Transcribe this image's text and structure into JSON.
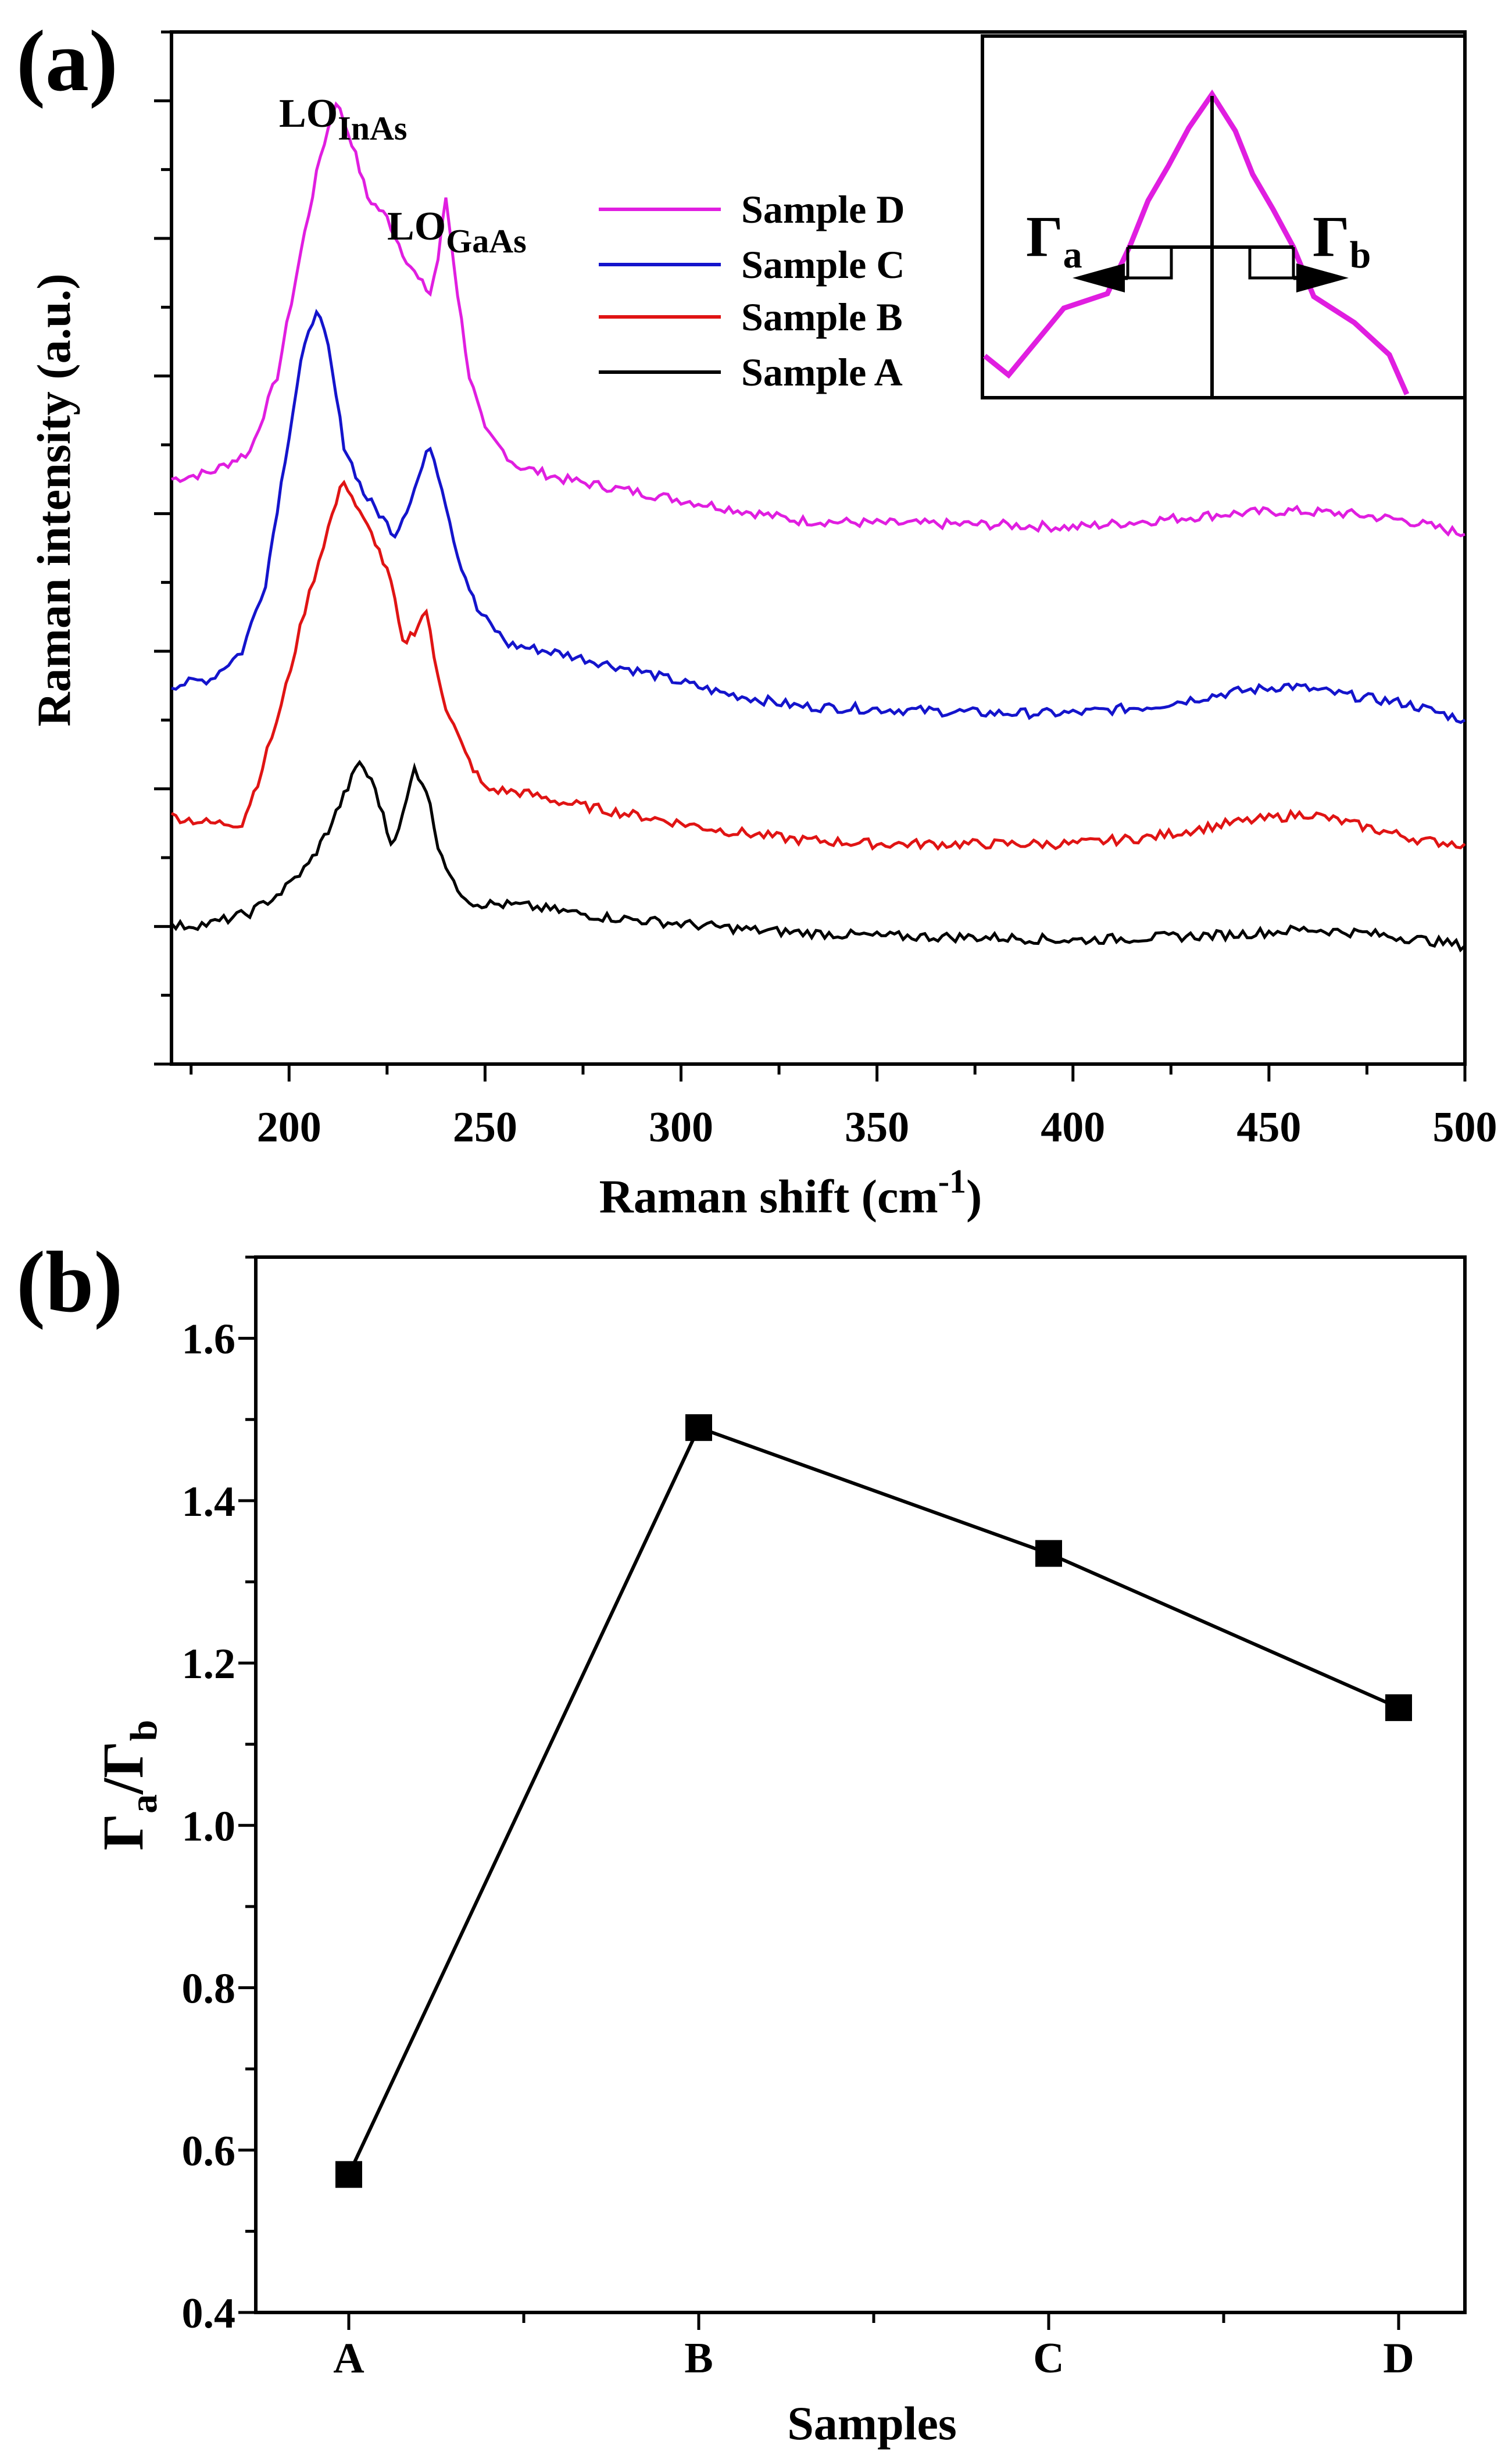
{
  "figure": {
    "colors": {
      "axis": "#000000",
      "sample_d": "#e01ee0",
      "sample_c": "#1414cc",
      "sample_b": "#e01414",
      "sample_a": "#000000"
    }
  },
  "chart_data": [
    {
      "panel": "(a)",
      "type": "line",
      "title": "",
      "xlabel": "Raman shift (cm",
      "xlabel_sup": "-1",
      "xlabel_end": ")",
      "ylabel": "Raman intensity (a.u.)",
      "xlim": [
        170,
        500
      ],
      "ylim": [
        0,
        7.5
      ],
      "x_ticks": [
        200,
        250,
        300,
        350,
        400,
        450,
        500
      ],
      "y_ticks_labeled": false,
      "peak_labels": [
        {
          "base": "LO",
          "sub": "InAs",
          "x": 212
        },
        {
          "base": "LO",
          "sub": "GaAs",
          "x": 240
        }
      ],
      "legend_position": "top-center",
      "series": [
        {
          "name": "Sample D",
          "color": "#e01ee0",
          "baseline": 4.2,
          "points": [
            [
              170,
              4.25
            ],
            [
              180,
              4.3
            ],
            [
              190,
              4.45
            ],
            [
              197,
              5.0
            ],
            [
              203,
              5.9
            ],
            [
              208,
              6.6
            ],
            [
              212,
              7.0
            ],
            [
              216,
              6.7
            ],
            [
              220,
              6.3
            ],
            [
              225,
              6.15
            ],
            [
              229,
              5.9
            ],
            [
              233,
              5.7
            ],
            [
              236,
              5.6
            ],
            [
              238,
              5.85
            ],
            [
              240,
              6.3
            ],
            [
              243,
              5.6
            ],
            [
              246,
              5.0
            ],
            [
              250,
              4.6
            ],
            [
              258,
              4.35
            ],
            [
              270,
              4.25
            ],
            [
              290,
              4.15
            ],
            [
              310,
              4.05
            ],
            [
              330,
              3.95
            ],
            [
              350,
              3.93
            ],
            [
              380,
              3.92
            ],
            [
              400,
              3.9
            ],
            [
              420,
              3.95
            ],
            [
              440,
              4.0
            ],
            [
              455,
              4.02
            ],
            [
              470,
              4.0
            ],
            [
              485,
              3.95
            ],
            [
              500,
              3.85
            ]
          ]
        },
        {
          "name": "Sample C",
          "color": "#1414cc",
          "baseline": 2.7,
          "points": [
            [
              170,
              2.75
            ],
            [
              180,
              2.8
            ],
            [
              188,
              3.0
            ],
            [
              194,
              3.5
            ],
            [
              199,
              4.4
            ],
            [
              203,
              5.1
            ],
            [
              207,
              5.5
            ],
            [
              210,
              5.2
            ],
            [
              214,
              4.5
            ],
            [
              219,
              4.15
            ],
            [
              223,
              4.0
            ],
            [
              227,
              3.85
            ],
            [
              231,
              4.1
            ],
            [
              236,
              4.5
            ],
            [
              239,
              4.2
            ],
            [
              243,
              3.7
            ],
            [
              248,
              3.3
            ],
            [
              256,
              3.05
            ],
            [
              270,
              2.98
            ],
            [
              290,
              2.85
            ],
            [
              310,
              2.7
            ],
            [
              330,
              2.6
            ],
            [
              350,
              2.58
            ],
            [
              380,
              2.55
            ],
            [
              400,
              2.55
            ],
            [
              420,
              2.6
            ],
            [
              440,
              2.7
            ],
            [
              455,
              2.75
            ],
            [
              470,
              2.68
            ],
            [
              485,
              2.62
            ],
            [
              500,
              2.5
            ]
          ]
        },
        {
          "name": "Sample B",
          "color": "#e01414",
          "baseline": 1.7,
          "points": [
            [
              170,
              1.8
            ],
            [
              180,
              1.75
            ],
            [
              188,
              1.75
            ],
            [
              192,
              2.05
            ],
            [
              198,
              2.6
            ],
            [
              204,
              3.3
            ],
            [
              210,
              3.9
            ],
            [
              214,
              4.25
            ],
            [
              218,
              4.0
            ],
            [
              222,
              3.8
            ],
            [
              226,
              3.5
            ],
            [
              229,
              3.05
            ],
            [
              232,
              3.15
            ],
            [
              235,
              3.3
            ],
            [
              237,
              2.95
            ],
            [
              240,
              2.6
            ],
            [
              245,
              2.25
            ],
            [
              250,
              2.0
            ],
            [
              260,
              1.97
            ],
            [
              270,
              1.9
            ],
            [
              290,
              1.8
            ],
            [
              310,
              1.7
            ],
            [
              330,
              1.63
            ],
            [
              350,
              1.6
            ],
            [
              380,
              1.6
            ],
            [
              400,
              1.6
            ],
            [
              420,
              1.65
            ],
            [
              440,
              1.75
            ],
            [
              460,
              1.82
            ],
            [
              475,
              1.72
            ],
            [
              490,
              1.62
            ],
            [
              500,
              1.6
            ]
          ]
        },
        {
          "name": "Sample A",
          "color": "#000000",
          "baseline": 1.0,
          "points": [
            [
              170,
              1.0
            ],
            [
              180,
              1.02
            ],
            [
              190,
              1.1
            ],
            [
              198,
              1.25
            ],
            [
              205,
              1.45
            ],
            [
              210,
              1.7
            ],
            [
              214,
              1.95
            ],
            [
              218,
              2.2
            ],
            [
              222,
              2.0
            ],
            [
              226,
              1.6
            ],
            [
              229,
              1.8
            ],
            [
              232,
              2.15
            ],
            [
              235,
              2.0
            ],
            [
              238,
              1.6
            ],
            [
              242,
              1.3
            ],
            [
              247,
              1.17
            ],
            [
              260,
              1.15
            ],
            [
              280,
              1.07
            ],
            [
              300,
              1.02
            ],
            [
              320,
              0.97
            ],
            [
              350,
              0.93
            ],
            [
              380,
              0.92
            ],
            [
              400,
              0.9
            ],
            [
              420,
              0.92
            ],
            [
              440,
              0.94
            ],
            [
              460,
              0.98
            ],
            [
              475,
              0.95
            ],
            [
              490,
              0.9
            ],
            [
              500,
              0.86
            ]
          ]
        }
      ],
      "inset": {
        "description_labels": {
          "left": "Γ",
          "left_sub": "a",
          "right": "Γ",
          "right_sub": "b"
        }
      }
    },
    {
      "panel": "(b)",
      "type": "line",
      "title": "",
      "xlabel": "Samples",
      "ylabel_parts": {
        "g1": "Γ",
        "s1": "a",
        "sep": "/Γ",
        "s2": "b"
      },
      "categories": [
        "A",
        "B",
        "C",
        "D"
      ],
      "values": [
        0.57,
        1.49,
        1.335,
        1.145
      ],
      "ylim": [
        0.4,
        1.7
      ],
      "y_ticks": [
        0.4,
        0.6,
        0.8,
        1.0,
        1.2,
        1.4,
        1.6
      ],
      "y_tick_labels": [
        "0.4",
        "0.6",
        "0.8",
        "1.0",
        "1.2",
        "1.4",
        "1.6"
      ],
      "marker": "square"
    }
  ]
}
